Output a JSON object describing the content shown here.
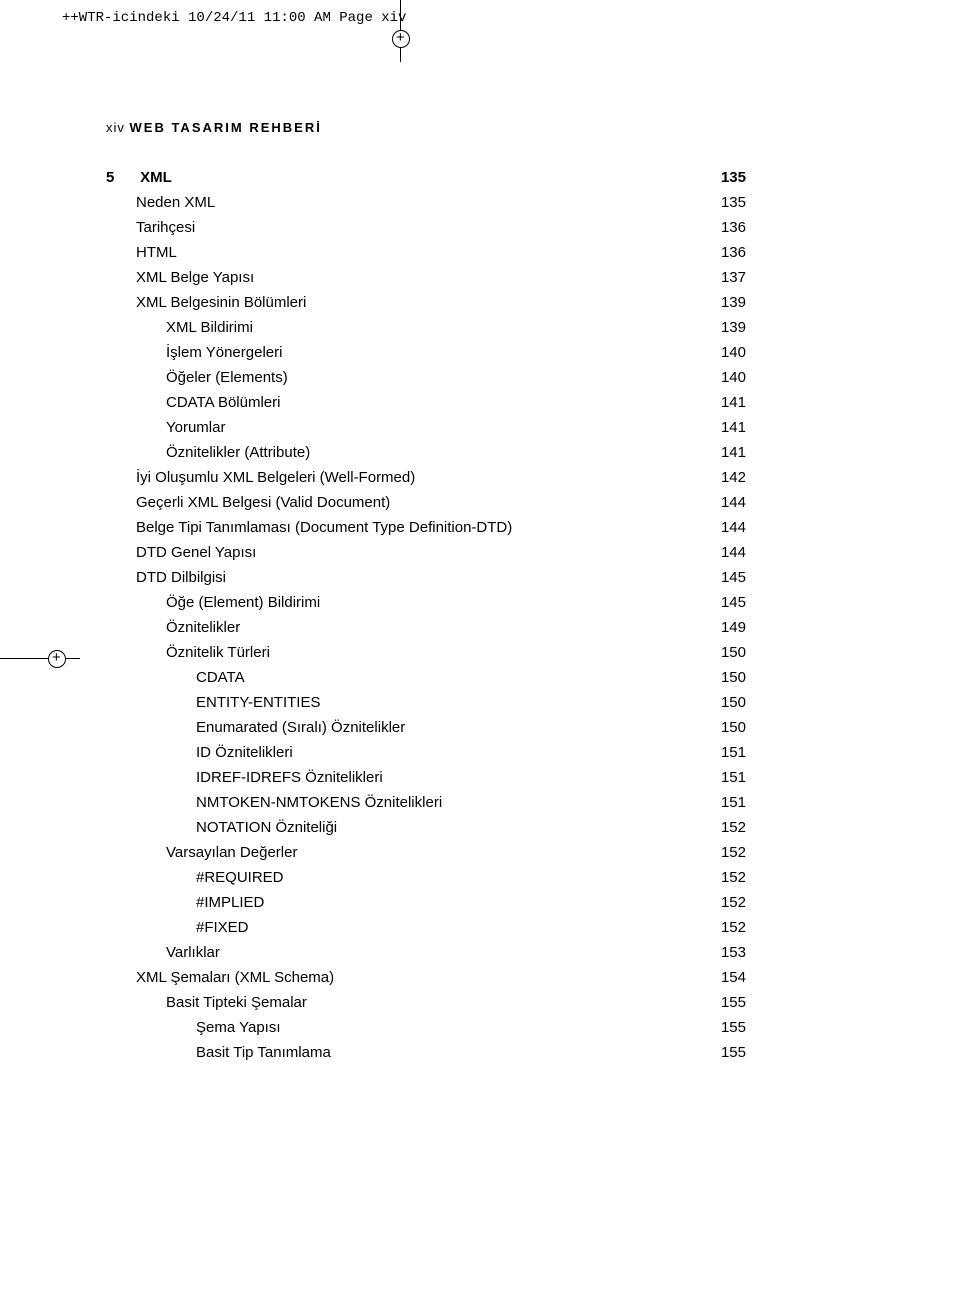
{
  "header": {
    "text": "++WTR-icindeki  10/24/11  11:00 AM  Page xiv"
  },
  "pageTitle": {
    "num": "xiv",
    "text": "WEB TASARIM REHBERİ"
  },
  "chapter": {
    "num": "5",
    "title": "XML",
    "page": "135"
  },
  "rows": [
    {
      "label": "Neden XML",
      "page": "135",
      "indent": "l1"
    },
    {
      "label": "Tarihçesi",
      "page": "136",
      "indent": "l1"
    },
    {
      "label": "HTML",
      "page": "136",
      "indent": "l1"
    },
    {
      "label": "XML Belge Yapısı",
      "page": "137",
      "indent": "l1"
    },
    {
      "label": "XML Belgesinin Bölümleri",
      "page": "139",
      "indent": "l1"
    },
    {
      "label": "XML Bildirimi",
      "page": "139",
      "indent": "l2"
    },
    {
      "label": "İşlem Yönergeleri",
      "page": "140",
      "indent": "l2"
    },
    {
      "label": "Öğeler (Elements)",
      "page": "140",
      "indent": "l2"
    },
    {
      "label": "CDATA Bölümleri",
      "page": "141",
      "indent": "l2"
    },
    {
      "label": "Yorumlar",
      "page": "141",
      "indent": "l2"
    },
    {
      "label": "Öznitelikler (Attribute)",
      "page": "141",
      "indent": "l2"
    },
    {
      "label": "İyi Oluşumlu XML Belgeleri (Well-Formed)",
      "page": "142",
      "indent": "l1"
    },
    {
      "label": "Geçerli XML Belgesi (Valid Document)",
      "page": "144",
      "indent": "l1"
    },
    {
      "label": "Belge Tipi Tanımlaması (Document Type Definition-DTD)",
      "page": "144",
      "indent": "l1"
    },
    {
      "label": "DTD Genel Yapısı",
      "page": "144",
      "indent": "l1"
    },
    {
      "label": "DTD Dilbilgisi",
      "page": "145",
      "indent": "l1"
    },
    {
      "label": "Öğe (Element) Bildirimi",
      "page": "145",
      "indent": "l2"
    },
    {
      "label": "Öznitelikler",
      "page": "149",
      "indent": "l2"
    },
    {
      "label": "Öznitelik Türleri",
      "page": "150",
      "indent": "l2"
    },
    {
      "label": "CDATA",
      "page": "150",
      "indent": "l3"
    },
    {
      "label": "ENTITY-ENTITIES",
      "page": "150",
      "indent": "l3"
    },
    {
      "label": "Enumarated (Sıralı) Öznitelikler",
      "page": "150",
      "indent": "l3"
    },
    {
      "label": "ID Öznitelikleri",
      "page": "151",
      "indent": "l3"
    },
    {
      "label": "IDREF-IDREFS Öznitelikleri",
      "page": "151",
      "indent": "l3"
    },
    {
      "label": "NMTOKEN-NMTOKENS Öznitelikleri",
      "page": "151",
      "indent": "l3"
    },
    {
      "label": "NOTATION Özniteliği",
      "page": "152",
      "indent": "l3"
    },
    {
      "label": "Varsayılan Değerler",
      "page": "152",
      "indent": "l2"
    },
    {
      "label": "#REQUIRED",
      "page": "152",
      "indent": "l3"
    },
    {
      "label": "#IMPLIED",
      "page": "152",
      "indent": "l3"
    },
    {
      "label": "#FIXED",
      "page": "152",
      "indent": "l3"
    },
    {
      "label": "Varlıklar",
      "page": "153",
      "indent": "l2"
    },
    {
      "label": "XML Şemaları (XML Schema)",
      "page": "154",
      "indent": "l1"
    },
    {
      "label": "Basit Tipteki Şemalar",
      "page": "155",
      "indent": "l2"
    },
    {
      "label": "Şema Yapısı",
      "page": "155",
      "indent": "l3"
    },
    {
      "label": "Basit Tip Tanımlama",
      "page": "155",
      "indent": "l3"
    }
  ]
}
